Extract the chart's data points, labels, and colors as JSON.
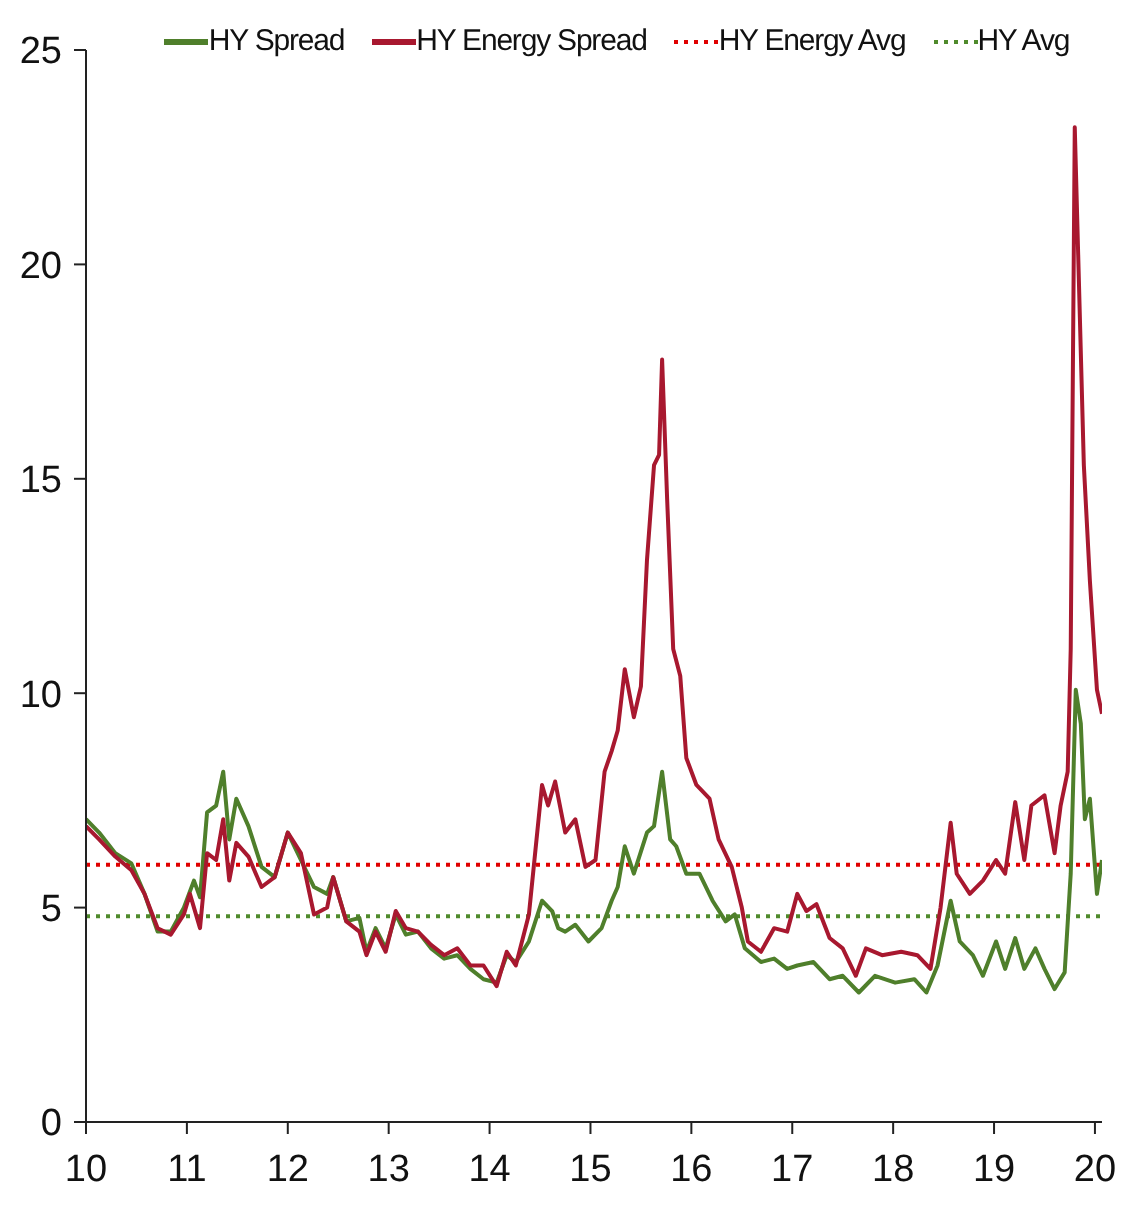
{
  "chart_data": {
    "type": "line",
    "xlim": [
      10,
      20.07
    ],
    "xticks": [
      10,
      11,
      12,
      13,
      14,
      15,
      16,
      17,
      18,
      19,
      20
    ],
    "ylim": [
      0,
      25
    ],
    "yticks": [
      0,
      5,
      10,
      15,
      20,
      25
    ],
    "legend": "top",
    "marker": "none",
    "line_style": "solid",
    "series": [
      {
        "name": "HY Spread",
        "color": "#4f7f2b",
        "x": [
          10.0,
          10.13,
          10.29,
          10.45,
          10.58,
          10.71,
          10.84,
          10.97,
          11.07,
          11.13,
          11.2,
          11.29,
          11.36,
          11.42,
          11.49,
          11.61,
          11.74,
          11.87,
          12.0,
          12.13,
          12.26,
          12.39,
          12.45,
          12.58,
          12.71,
          12.78,
          12.87,
          12.97,
          13.07,
          13.17,
          13.29,
          13.42,
          13.55,
          13.68,
          13.81,
          13.94,
          14.07,
          14.17,
          14.26,
          14.39,
          14.52,
          14.62,
          14.68,
          14.75,
          14.85,
          14.98,
          15.11,
          15.21,
          15.27,
          15.34,
          15.43,
          15.56,
          15.63,
          15.71,
          15.79,
          15.85,
          15.95,
          16.08,
          16.21,
          16.34,
          16.43,
          16.53,
          16.69,
          16.82,
          16.95,
          17.05,
          17.21,
          17.37,
          17.5,
          17.66,
          17.82,
          18.02,
          18.21,
          18.33,
          18.44,
          18.57,
          18.66,
          18.79,
          18.89,
          19.02,
          19.11,
          19.21,
          19.3,
          19.41,
          19.5,
          19.6,
          19.7,
          19.76,
          19.81,
          19.86,
          19.9,
          19.95,
          20.02,
          20.07
        ],
        "values": [
          7.06,
          6.75,
          6.27,
          6.03,
          5.32,
          4.44,
          4.44,
          5.0,
          5.63,
          5.24,
          7.22,
          7.38,
          8.17,
          6.59,
          7.54,
          6.9,
          5.95,
          5.71,
          6.75,
          6.11,
          5.48,
          5.32,
          5.71,
          4.68,
          4.76,
          3.97,
          4.52,
          4.05,
          4.84,
          4.37,
          4.44,
          4.05,
          3.81,
          3.89,
          3.57,
          3.33,
          3.25,
          3.89,
          3.73,
          4.21,
          5.16,
          4.92,
          4.52,
          4.44,
          4.6,
          4.21,
          4.52,
          5.16,
          5.48,
          6.43,
          5.79,
          6.75,
          6.9,
          8.17,
          6.59,
          6.43,
          5.79,
          5.79,
          5.16,
          4.68,
          4.84,
          4.05,
          3.73,
          3.81,
          3.57,
          3.65,
          3.73,
          3.33,
          3.41,
          3.02,
          3.41,
          3.25,
          3.33,
          3.02,
          3.65,
          5.16,
          4.21,
          3.89,
          3.41,
          4.21,
          3.57,
          4.29,
          3.57,
          4.05,
          3.57,
          3.1,
          3.49,
          5.79,
          10.08,
          9.29,
          7.06,
          7.54,
          5.32,
          6.11
        ]
      },
      {
        "name": "HY Energy Spread",
        "color": "#a8182f",
        "x": [
          10.0,
          10.13,
          10.29,
          10.45,
          10.58,
          10.71,
          10.84,
          10.97,
          11.03,
          11.13,
          11.2,
          11.29,
          11.36,
          11.42,
          11.49,
          11.61,
          11.74,
          11.87,
          12.0,
          12.13,
          12.26,
          12.39,
          12.45,
          12.58,
          12.71,
          12.78,
          12.87,
          12.97,
          13.07,
          13.17,
          13.29,
          13.42,
          13.55,
          13.68,
          13.81,
          13.94,
          14.07,
          14.17,
          14.26,
          14.39,
          14.52,
          14.58,
          14.65,
          14.75,
          14.85,
          14.95,
          15.05,
          15.14,
          15.21,
          15.27,
          15.34,
          15.43,
          15.5,
          15.56,
          15.63,
          15.68,
          15.71,
          15.76,
          15.82,
          15.89,
          15.95,
          16.05,
          16.18,
          16.27,
          16.4,
          16.5,
          16.56,
          16.69,
          16.82,
          16.95,
          17.05,
          17.14,
          17.24,
          17.37,
          17.5,
          17.63,
          17.73,
          17.89,
          18.08,
          18.24,
          18.37,
          18.47,
          18.57,
          18.63,
          18.76,
          18.89,
          19.02,
          19.11,
          19.21,
          19.3,
          19.37,
          19.5,
          19.6,
          19.66,
          19.73,
          19.76,
          19.8,
          19.89,
          19.95,
          20.02,
          20.07
        ],
        "values": [
          6.9,
          6.59,
          6.19,
          5.87,
          5.32,
          4.52,
          4.37,
          4.84,
          5.32,
          4.52,
          6.27,
          6.11,
          7.06,
          5.63,
          6.51,
          6.19,
          5.48,
          5.71,
          6.75,
          6.27,
          4.84,
          5.0,
          5.71,
          4.68,
          4.44,
          3.89,
          4.44,
          3.97,
          4.92,
          4.52,
          4.44,
          4.13,
          3.89,
          4.05,
          3.65,
          3.65,
          3.17,
          3.97,
          3.65,
          4.84,
          7.86,
          7.38,
          7.94,
          6.75,
          7.06,
          5.95,
          6.11,
          8.17,
          8.65,
          9.13,
          10.56,
          9.44,
          10.16,
          13.1,
          15.32,
          15.56,
          17.78,
          14.52,
          11.03,
          10.4,
          8.49,
          7.86,
          7.54,
          6.59,
          5.95,
          5.0,
          4.21,
          3.97,
          4.52,
          4.44,
          5.32,
          4.92,
          5.08,
          4.29,
          4.05,
          3.41,
          4.05,
          3.89,
          3.97,
          3.89,
          3.57,
          5.0,
          6.98,
          5.79,
          5.32,
          5.63,
          6.11,
          5.79,
          7.46,
          6.11,
          7.38,
          7.62,
          6.27,
          7.38,
          8.17,
          11.03,
          23.2,
          15.32,
          12.62,
          10.08,
          9.52
        ]
      }
    ],
    "ref_lines": [
      {
        "axis": "y",
        "value": 6.0,
        "label": "HY Energy Avg",
        "color": "#e00000",
        "line_style": "dotted"
      },
      {
        "axis": "y",
        "value": 4.8,
        "label": "HY Avg",
        "color": "#4f8a2b",
        "line_style": "dotted"
      }
    ]
  }
}
